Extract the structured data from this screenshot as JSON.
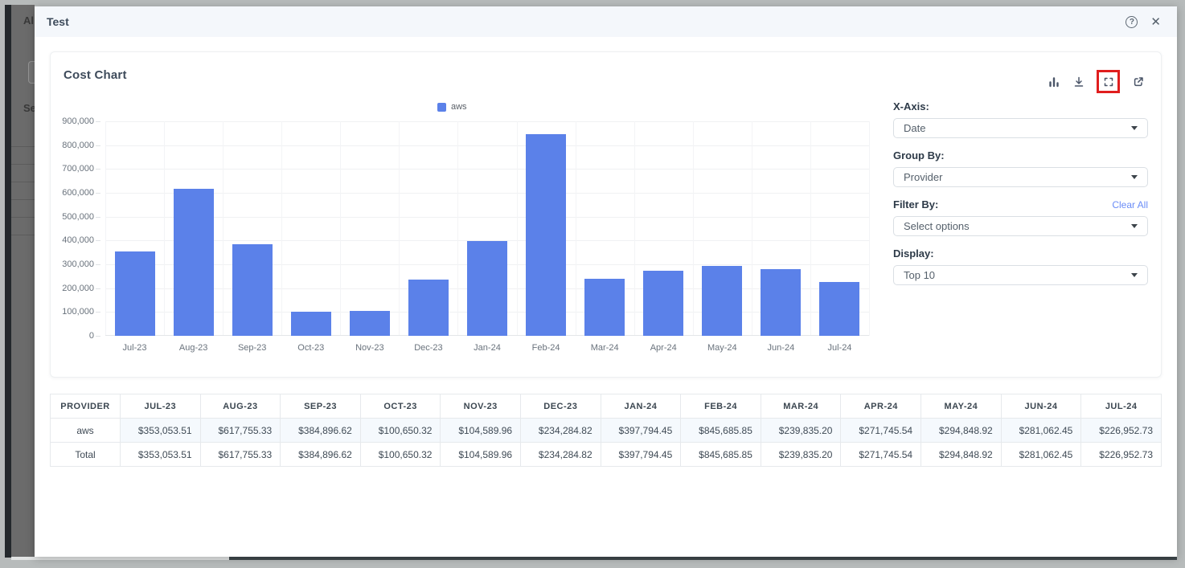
{
  "modal": {
    "title": "Test",
    "help_icon": "question-mark-circle",
    "close_icon": "x"
  },
  "background": {
    "clipped_text_top": "Al",
    "clipped_text_mid": "Se"
  },
  "card": {
    "title": "Cost Chart",
    "toolbar_icons": [
      "bar-chart",
      "download",
      "fullscreen",
      "open-in-new"
    ],
    "controls": {
      "x_axis_label": "X-Axis:",
      "x_axis_value": "Date",
      "group_by_label": "Group By:",
      "group_by_value": "Provider",
      "filter_by_label": "Filter By:",
      "clear_all_label": "Clear All",
      "filter_by_value": "Select options",
      "display_label": "Display:",
      "display_value": "Top 10"
    }
  },
  "chart_data": {
    "type": "bar",
    "title": "Cost Chart",
    "categories": [
      "Jul-23",
      "Aug-23",
      "Sep-23",
      "Oct-23",
      "Nov-23",
      "Dec-23",
      "Jan-24",
      "Feb-24",
      "Mar-24",
      "Apr-24",
      "May-24",
      "Jun-24",
      "Jul-24"
    ],
    "series": [
      {
        "name": "aws",
        "color": "#5b81e9",
        "values": [
          353053.51,
          617755.33,
          384896.62,
          100650.32,
          104589.96,
          234284.82,
          397794.45,
          845685.85,
          239835.2,
          271745.54,
          294848.92,
          281062.45,
          226952.73
        ]
      }
    ],
    "xlabel": "",
    "ylabel": "",
    "ylim": [
      0,
      900000
    ],
    "ytick_step": 100000,
    "grid": true,
    "legend_position": "top"
  },
  "table": {
    "columns": [
      "PROVIDER",
      "JUL-23",
      "AUG-23",
      "SEP-23",
      "OCT-23",
      "NOV-23",
      "DEC-23",
      "JAN-24",
      "FEB-24",
      "MAR-24",
      "APR-24",
      "MAY-24",
      "JUN-24",
      "JUL-24"
    ],
    "rows": [
      {
        "provider": "aws",
        "values": [
          "$353,053.51",
          "$617,755.33",
          "$384,896.62",
          "$100,650.32",
          "$104,589.96",
          "$234,284.82",
          "$397,794.45",
          "$845,685.85",
          "$239,835.20",
          "$271,745.54",
          "$294,848.92",
          "$281,062.45",
          "$226,952.73"
        ]
      },
      {
        "provider": "Total",
        "values": [
          "$353,053.51",
          "$617,755.33",
          "$384,896.62",
          "$100,650.32",
          "$104,589.96",
          "$234,284.82",
          "$397,794.45",
          "$845,685.85",
          "$239,835.20",
          "$271,745.54",
          "$294,848.92",
          "$281,062.45",
          "$226,952.73"
        ]
      }
    ]
  },
  "colors": {
    "bar": "#5b81e9",
    "annotation": "#e01e1e",
    "link": "#6a8cf7",
    "modal_header_bg": "#f4f7fb"
  }
}
